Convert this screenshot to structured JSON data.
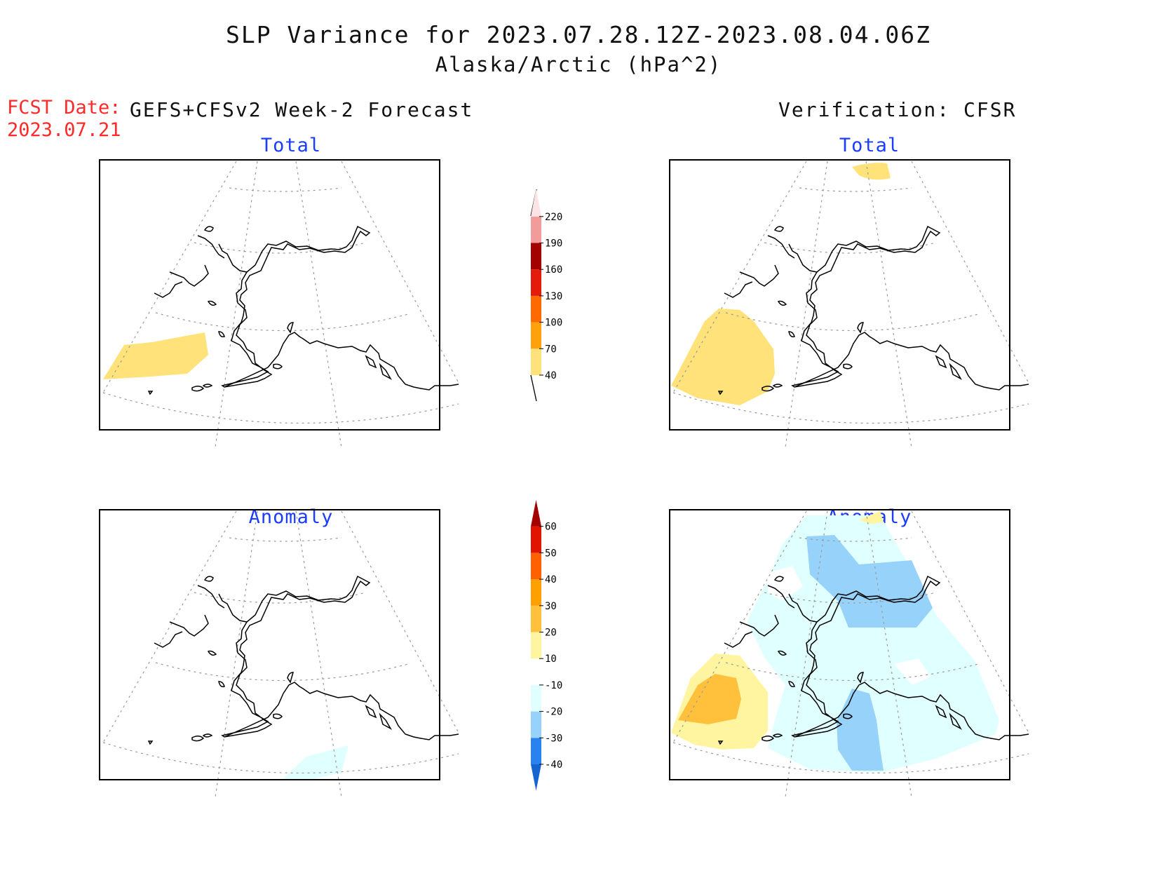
{
  "header": {
    "title": "SLP Variance for 2023.07.28.12Z-2023.08.04.06Z",
    "subtitle": "Alaska/Arctic (hPa^2)"
  },
  "forecast_info": {
    "label": "FCST Date:",
    "date": "2023.07.21"
  },
  "columns": {
    "left": "GEFS+CFSv2 Week-2 Forecast",
    "right": "Verification: CFSR"
  },
  "panels": {
    "top_left": "Total",
    "top_right": "Total",
    "bottom_left": "Anomaly",
    "bottom_right": "Anomaly"
  },
  "colorbar_total": {
    "labels": [
      "40",
      "70",
      "100",
      "130",
      "160",
      "190",
      "220"
    ],
    "colors": [
      "#ffe27a",
      "#ffa10c",
      "#ff6a00",
      "#e41a0a",
      "#a50000",
      "#f29b9b",
      "#fde4e4"
    ]
  },
  "colorbar_anomaly": {
    "labels": [
      "-40",
      "-30",
      "-20",
      "-10",
      "10",
      "20",
      "30",
      "40",
      "50",
      "60"
    ],
    "colors": [
      "#1464d2",
      "#2882f0",
      "#96d2fa",
      "#e0ffff",
      "#ffffff",
      "#fff5a0",
      "#ffc03c",
      "#ffa000",
      "#ff6000",
      "#e11400",
      "#a50000"
    ]
  }
}
